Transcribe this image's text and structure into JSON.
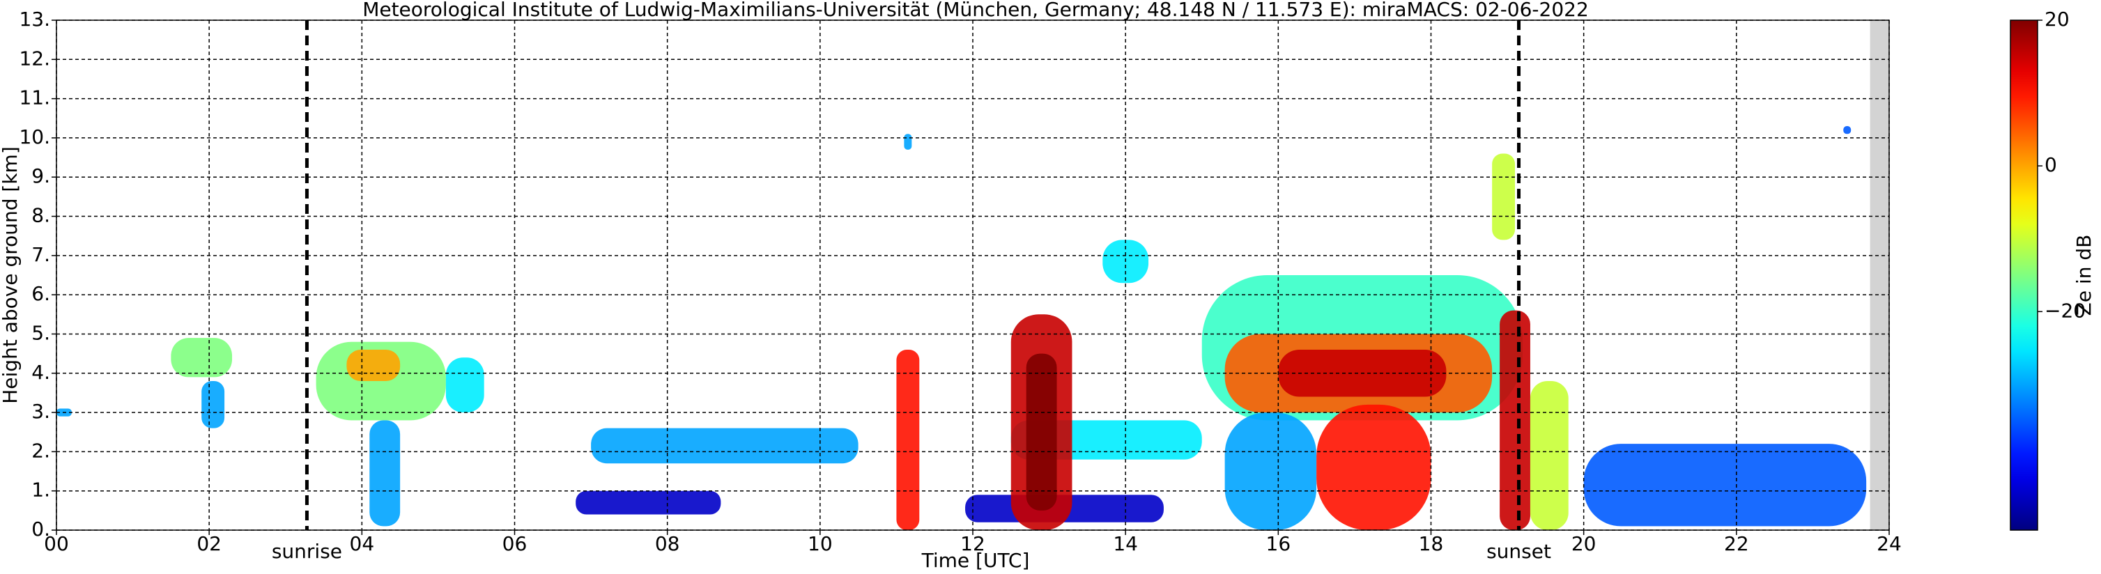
{
  "chart_data": {
    "type": "heatmap",
    "title": "Meteorological Institute of Ludwig-Maximilians-Universität (München, Germany; 48.148 N / 11.573 E):    miraMACS: 02-06-2022",
    "x_label": "Time [UTC]",
    "y_label": "Height above ground [km]",
    "colorbar_label": "Ze in dB",
    "colormap": "jet",
    "grid": true,
    "xlim": [
      0,
      24
    ],
    "ylim": [
      0,
      13
    ],
    "clim": [
      -50,
      20
    ],
    "xticks": [
      {
        "value": 0,
        "label": "00"
      },
      {
        "value": 2,
        "label": "02"
      },
      {
        "value": 4,
        "label": "04"
      },
      {
        "value": 6,
        "label": "06"
      },
      {
        "value": 8,
        "label": "08"
      },
      {
        "value": 10,
        "label": "10"
      },
      12,
      14,
      16,
      18,
      20,
      22,
      24
    ],
    "yticks": [
      {
        "value": 0,
        "label": "0."
      },
      {
        "value": 1,
        "label": "1."
      },
      {
        "value": 2,
        "label": "2."
      },
      {
        "value": 3,
        "label": "3."
      },
      {
        "value": 4,
        "label": "4."
      },
      {
        "value": 5,
        "label": "5."
      },
      {
        "value": 6,
        "label": "6."
      },
      {
        "value": 7,
        "label": "7."
      },
      {
        "value": 8,
        "label": "8."
      },
      {
        "value": 9,
        "label": "9."
      },
      {
        "value": 10,
        "label": "10."
      },
      {
        "value": 11,
        "label": "11."
      },
      {
        "value": 12,
        "label": "12."
      },
      {
        "value": 13,
        "label": "13."
      }
    ],
    "cticks": [
      {
        "value": -20,
        "label": "−20"
      },
      0,
      20
    ],
    "events": [
      {
        "label": "sunrise",
        "x": 3.28
      },
      {
        "label": "sunset",
        "x": 19.15
      }
    ],
    "no_data_x": [
      23.75,
      24
    ],
    "features": [
      {
        "x": [
          7.0,
          10.5
        ],
        "y": [
          1.7,
          2.6
        ],
        "value": -30
      },
      {
        "x": [
          6.8,
          8.7
        ],
        "y": [
          0.4,
          1.0
        ],
        "value": -45
      },
      {
        "x": [
          11.9,
          14.5
        ],
        "y": [
          0.2,
          0.9
        ],
        "value": -45
      },
      {
        "x": [
          12.5,
          15.0
        ],
        "y": [
          1.8,
          2.8
        ],
        "value": -25
      },
      {
        "x": [
          20.0,
          23.7
        ],
        "y": [
          0.1,
          2.2
        ],
        "value": -35
      },
      {
        "x": [
          0.0,
          0.2
        ],
        "y": [
          2.9,
          3.1
        ],
        "value": -30
      },
      {
        "x": [
          1.5,
          2.3
        ],
        "y": [
          3.9,
          4.9
        ],
        "value": -15
      },
      {
        "x": [
          1.9,
          2.2
        ],
        "y": [
          2.6,
          3.8
        ],
        "value": -30
      },
      {
        "x": [
          3.4,
          5.1
        ],
        "y": [
          2.8,
          4.8
        ],
        "value": -15
      },
      {
        "x": [
          3.8,
          4.5
        ],
        "y": [
          3.8,
          4.6
        ],
        "value": 0
      },
      {
        "x": [
          4.1,
          4.5
        ],
        "y": [
          0.1,
          2.8
        ],
        "value": -30
      },
      {
        "x": [
          5.1,
          5.6
        ],
        "y": [
          3.0,
          4.4
        ],
        "value": -25
      },
      {
        "x": [
          11.0,
          11.3
        ],
        "y": [
          0.0,
          4.6
        ],
        "value": 10
      },
      {
        "x": [
          12.5,
          13.3
        ],
        "y": [
          0.0,
          5.5
        ],
        "value": 15
      },
      {
        "x": [
          12.7,
          13.1
        ],
        "y": [
          0.5,
          4.5
        ],
        "value": 20
      },
      {
        "x": [
          13.7,
          14.3
        ],
        "y": [
          6.3,
          7.4
        ],
        "value": -25
      },
      {
        "x": [
          15.0,
          19.2
        ],
        "y": [
          2.8,
          6.5
        ],
        "value": -20
      },
      {
        "x": [
          15.3,
          16.5
        ],
        "y": [
          0.0,
          3.0
        ],
        "value": -30
      },
      {
        "x": [
          15.3,
          18.8
        ],
        "y": [
          3.0,
          5.0
        ],
        "value": 5
      },
      {
        "x": [
          16.0,
          18.2
        ],
        "y": [
          3.4,
          4.6
        ],
        "value": 15
      },
      {
        "x": [
          16.5,
          18.0
        ],
        "y": [
          0.0,
          3.2
        ],
        "value": 10
      },
      {
        "x": [
          18.8,
          19.1
        ],
        "y": [
          7.4,
          9.6
        ],
        "value": -10
      },
      {
        "x": [
          18.9,
          19.3
        ],
        "y": [
          0.0,
          5.6
        ],
        "value": 15
      },
      {
        "x": [
          19.3,
          19.8
        ],
        "y": [
          0.0,
          3.8
        ],
        "value": -10
      },
      {
        "x": [
          23.4,
          23.5
        ],
        "y": [
          10.1,
          10.3
        ],
        "value": -35
      },
      {
        "x": [
          11.1,
          11.2
        ],
        "y": [
          9.7,
          10.1
        ],
        "value": -30
      }
    ]
  }
}
